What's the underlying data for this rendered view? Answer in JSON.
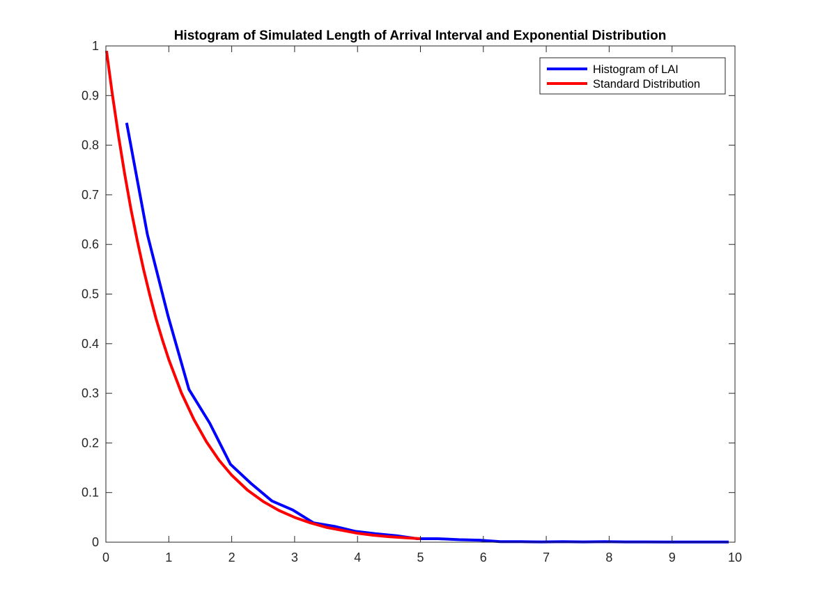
{
  "chart_data": {
    "type": "line",
    "title": "Histogram of Simulated Length of Arrival Interval and Exponential Distribution",
    "xlabel": "",
    "ylabel": "",
    "xlim": [
      0,
      10
    ],
    "ylim": [
      0,
      1
    ],
    "xticks": [
      "0",
      "1",
      "2",
      "3",
      "4",
      "5",
      "6",
      "7",
      "8",
      "9",
      "10"
    ],
    "yticks": [
      "0",
      "0.1",
      "0.2",
      "0.3",
      "0.4",
      "0.5",
      "0.6",
      "0.7",
      "0.8",
      "0.9",
      "1"
    ],
    "grid": false,
    "legend_position": "top-right",
    "series": [
      {
        "name": "Histogram of LAI",
        "color": "#0000ff",
        "x": [
          0.33,
          0.66,
          0.99,
          1.32,
          1.65,
          1.98,
          2.31,
          2.64,
          2.97,
          3.3,
          3.63,
          3.96,
          4.29,
          4.62,
          4.95,
          5.28,
          5.61,
          5.94,
          6.27,
          6.6,
          6.93,
          7.26,
          7.59,
          7.92,
          8.25,
          8.58,
          8.91,
          9.24,
          9.57,
          9.9
        ],
        "y": [
          0.845,
          0.62,
          0.455,
          0.308,
          0.24,
          0.157,
          0.118,
          0.083,
          0.065,
          0.039,
          0.032,
          0.022,
          0.017,
          0.013,
          0.007,
          0.007,
          0.005,
          0.004,
          0.001,
          0.001,
          0.0005,
          0.001,
          0.0005,
          0.001,
          0.0005,
          0.0005,
          0.0003,
          0.0003,
          0.0003,
          0.0003
        ]
      },
      {
        "name": "Standard Distribution",
        "color": "#ff0000",
        "x": [
          0.01,
          0.1,
          0.2,
          0.3,
          0.4,
          0.5,
          0.6,
          0.7,
          0.8,
          0.9,
          1.0,
          1.2,
          1.4,
          1.6,
          1.8,
          2.0,
          2.25,
          2.5,
          2.75,
          3.0,
          3.25,
          3.5,
          3.75,
          4.0,
          4.25,
          4.5,
          4.75,
          5.0
        ],
        "y": [
          0.99,
          0.905,
          0.819,
          0.741,
          0.67,
          0.607,
          0.549,
          0.497,
          0.449,
          0.407,
          0.368,
          0.301,
          0.247,
          0.202,
          0.165,
          0.135,
          0.105,
          0.082,
          0.064,
          0.05,
          0.039,
          0.03,
          0.024,
          0.018,
          0.014,
          0.011,
          0.009,
          0.007
        ]
      }
    ]
  }
}
